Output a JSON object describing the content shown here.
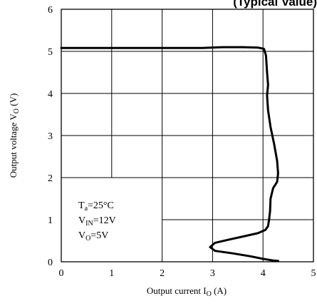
{
  "chart_data": {
    "type": "line",
    "title": "(Typical Value)",
    "xlabel": "Output current I",
    "xlabel_sub": "O",
    "xlabel_unit": " (A)",
    "ylabel": "Output voltage V",
    "ylabel_sub": "O",
    "ylabel_unit": " (V)",
    "xlim": [
      0,
      5
    ],
    "ylim": [
      0,
      6
    ],
    "x_ticks": [
      "0",
      "1",
      "2",
      "3",
      "4",
      "5"
    ],
    "y_ticks": [
      "0",
      "1",
      "2",
      "3",
      "4",
      "5",
      "6"
    ],
    "grid": true,
    "annotations": [
      {
        "text": "T",
        "sub": "a",
        "rest": "=25°C"
      },
      {
        "text": "V",
        "sub": "IN",
        "rest": "=12V"
      },
      {
        "text": "V",
        "sub": "O",
        "rest": "=5V"
      }
    ],
    "series": [
      {
        "color": "#000000",
        "points": [
          [
            0,
            5.08
          ],
          [
            1,
            5.08
          ],
          [
            2,
            5.08
          ],
          [
            2.8,
            5.08
          ],
          [
            3.2,
            5.1
          ],
          [
            3.6,
            5.1
          ],
          [
            3.9,
            5.09
          ],
          [
            4.02,
            5.06
          ],
          [
            4.06,
            4.9
          ],
          [
            4.08,
            4.5
          ],
          [
            4.1,
            4.2
          ],
          [
            4.08,
            3.95
          ],
          [
            4.1,
            3.6
          ],
          [
            4.15,
            3.2
          ],
          [
            4.22,
            2.8
          ],
          [
            4.28,
            2.4
          ],
          [
            4.3,
            2.1
          ],
          [
            4.28,
            1.9
          ],
          [
            4.2,
            1.75
          ],
          [
            4.15,
            1.5
          ],
          [
            4.14,
            1.2
          ],
          [
            4.12,
            1.0
          ],
          [
            4.1,
            0.85
          ],
          [
            4.05,
            0.76
          ],
          [
            3.9,
            0.68
          ],
          [
            3.6,
            0.6
          ],
          [
            3.3,
            0.52
          ],
          [
            3.05,
            0.45
          ],
          [
            2.95,
            0.35
          ],
          [
            3.05,
            0.26
          ],
          [
            3.4,
            0.2
          ],
          [
            3.75,
            0.13
          ],
          [
            4.0,
            0.07
          ],
          [
            4.2,
            0.03
          ],
          [
            4.3,
            0.02
          ]
        ]
      }
    ]
  }
}
